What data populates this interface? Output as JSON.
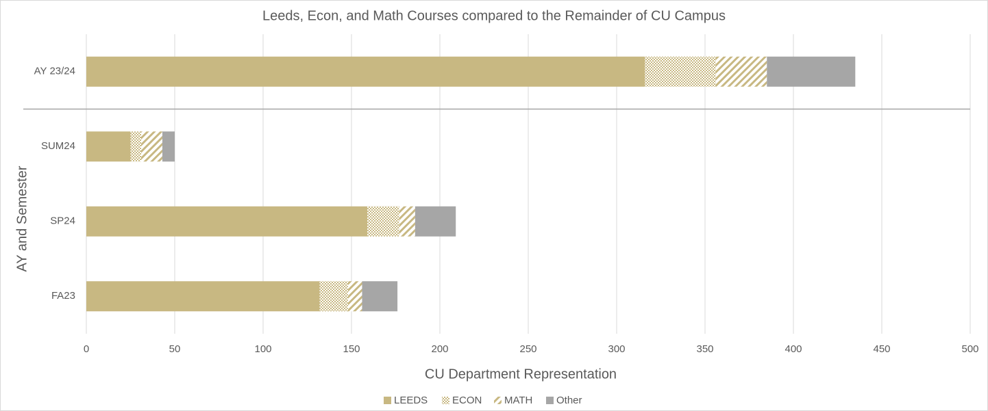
{
  "chart_data": {
    "type": "stacked-bar-horizontal",
    "title": "Leeds, Econ, and Math Courses compared to the Remainder of CU Campus",
    "x_label": "CU Department Representation",
    "y_label": "AY and Semester",
    "categories": [
      "AY 23/24",
      "SUM24",
      "SP24",
      "FA23"
    ],
    "series": [
      {
        "name": "LEEDS",
        "color": "#c8b882",
        "pattern": "solid",
        "values": [
          316,
          25,
          159,
          132
        ]
      },
      {
        "name": "ECON",
        "color": "#c8b882",
        "pattern": "dots",
        "values": [
          40,
          6,
          18,
          16
        ]
      },
      {
        "name": "MATH",
        "color": "#c8b882",
        "pattern": "stripes",
        "values": [
          29,
          12,
          9,
          8
        ]
      },
      {
        "name": "Other",
        "color": "#a6a6a6",
        "pattern": "solid",
        "values": [
          50,
          7,
          23,
          20
        ]
      }
    ],
    "xlim": [
      0,
      500
    ],
    "xticks": [
      0,
      50,
      100,
      150,
      200,
      250,
      300,
      350,
      400,
      450,
      500
    ],
    "grid": true,
    "legend": "bottom"
  }
}
